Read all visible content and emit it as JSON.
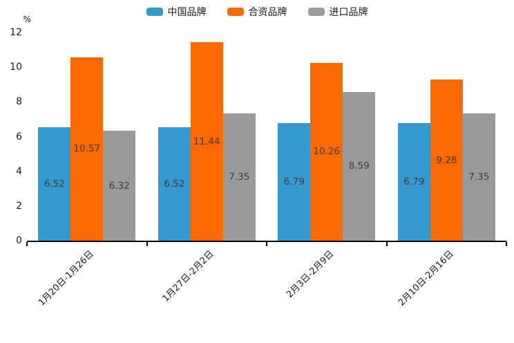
{
  "chart_data": {
    "type": "bar",
    "title": "",
    "xlabel": "",
    "ylabel": "%",
    "categories": [
      "1月20日-1月26日",
      "1月27日-2月2日",
      "2月3日-2月9日",
      "2月10日-2月16日"
    ],
    "series": [
      {
        "name": "中国品牌",
        "color": "#3499CE",
        "values": [
          6.52,
          6.52,
          6.79,
          6.79
        ]
      },
      {
        "name": "合资品牌",
        "color": "#FB6A02",
        "values": [
          10.57,
          11.44,
          10.26,
          9.28
        ]
      },
      {
        "name": "进口品牌",
        "color": "#9A9A9A",
        "values": [
          6.32,
          7.35,
          8.59,
          7.35
        ]
      }
    ],
    "ylim": [
      0,
      12
    ],
    "y_ticks": [
      0,
      2,
      4,
      6,
      8,
      10,
      12
    ],
    "grid": false,
    "legend_position": "top-center",
    "value_labels": "inside-center",
    "value_label_color": "#3D3D3D",
    "axis_color": "#000000",
    "background_color": "#FFFFFF"
  }
}
